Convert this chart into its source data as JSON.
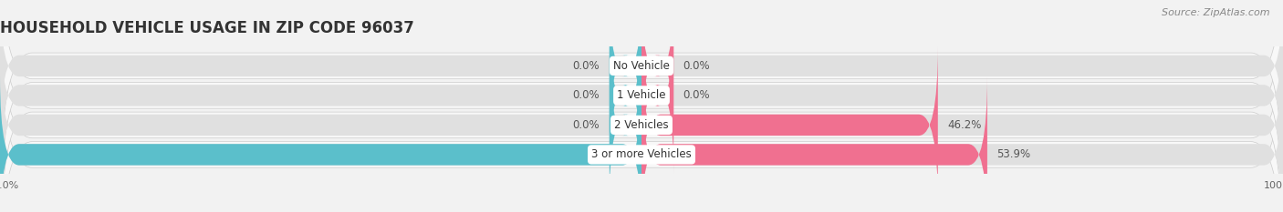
{
  "title": "HOUSEHOLD VEHICLE USAGE IN ZIP CODE 96037",
  "source": "Source: ZipAtlas.com",
  "categories": [
    "No Vehicle",
    "1 Vehicle",
    "2 Vehicles",
    "3 or more Vehicles"
  ],
  "owner_values": [
    0.0,
    0.0,
    0.0,
    100.0
  ],
  "renter_values": [
    0.0,
    0.0,
    46.2,
    53.9
  ],
  "owner_color": "#5bbfcb",
  "renter_color": "#f07090",
  "bg_color": "#f2f2f2",
  "bar_bg_color": "#e0e0e0",
  "row_bg_color": "#f8f8f8",
  "title_fontsize": 12,
  "source_fontsize": 8,
  "label_fontsize": 8.5,
  "axis_label_fontsize": 8,
  "min_bar": 5.0,
  "xlim": 100,
  "figsize": [
    14.06,
    2.33
  ],
  "dpi": 100
}
